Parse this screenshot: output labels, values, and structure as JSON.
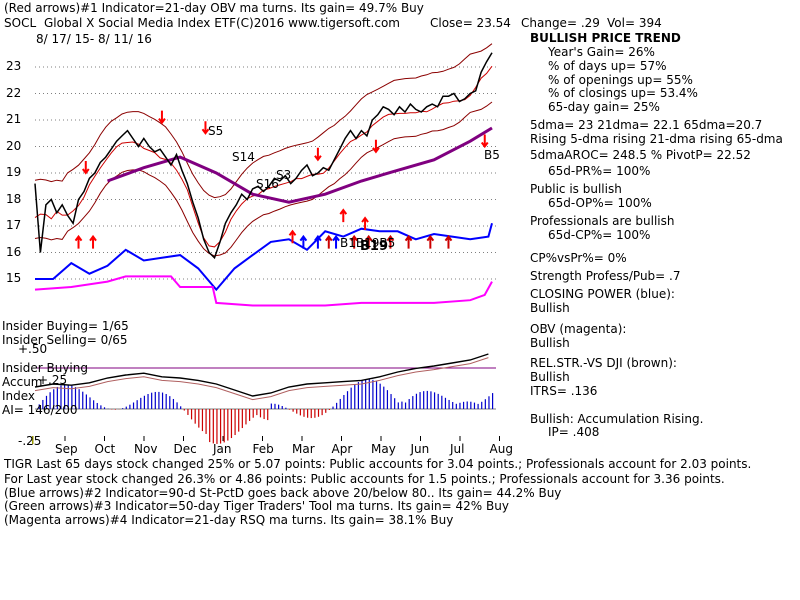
{
  "header": {
    "line1": "(Red arrows)#1 Indicator=21-day OBV ma turns. Its gain= 49.7% Buy",
    "symbol": "SOCL",
    "name": "Global X Social Media Index ETF",
    "copyright": "(C)2016 www.tigersoft.com",
    "close": "Close= 23.54",
    "change": "Change= .29",
    "vol": "Vol= 394",
    "daterange": "8/ 17/ 15- 8/ 11/ 16"
  },
  "right_panel": {
    "trend": "BULLISH PRICE TREND",
    "year_gain": "Year's Gain= 26%",
    "days_up": "% of days up= 57%",
    "openings_up": "% of openings up= 55%",
    "closings_up": "% of closings up= 53.4%",
    "gain65": "65-day gain= 25%",
    "dma": "5dma= 23 21dma= 22.1 65dma=20.7",
    "rising": "Rising 5-dma rising 21-dma rising 65-dma",
    "aroc": "5dmaAROC= 248.5 %  PivotP= 22.52",
    "pr": "65d-PR%= 100%",
    "public": "Public is bullish",
    "op": "65d-OP%= 100%",
    "prof": "Professionals are bullish",
    "cp": "65d-CP%= 100%",
    "cpvspr": "CP%vsPr%=  0%",
    "strength": "Strength Profess/Pub= .7",
    "closing_power": "CLOSING POWER (blue):",
    "cp_state": "Bullish",
    "obv": "OBV (magenta):",
    "obv_state": "Bullish",
    "relstr": "REL.STR.-VS DJI (brown):",
    "relstr_state": "Bullish",
    "itrs": "ITRS= .136",
    "accum": "Bullish: Accumulation Rising.",
    "ip": "IP=  .408"
  },
  "left_labels": {
    "insider_buying": "Insider Buying= 1/65",
    "insider_selling": "Insider Selling= 0/65",
    "insider_buying2": "Insider Buying",
    "accum_line1": "Accum",
    "accum_line2": "Index",
    "ai": "AI= 146/200",
    "plus50": "+.50",
    "plus25": "+.25",
    "minus25": "-.25"
  },
  "signals": {
    "s5": "S5",
    "s14": "S14",
    "s16": "S16",
    "s3": "S3",
    "b5": "B5",
    "b_cluster": "B1B19B5",
    "b19": "B19"
  },
  "bottom": {
    "line1": "TIGR Last 65 days stock changed  25% or  5.07 points:  Public accounts for  3.04 points.;  Professionals account for  2.03 points.",
    "line2": "For Last year stock changed  26.3% or  4.86 points:  Public accounts for  1.5 points.;  Professionals account for  3.36 points.",
    "line3": "(Blue arrows)#2 Indicator=90-d St-PctD goes back above 20/below 80.. Its gain= 44.2% Buy",
    "line4": "(Green arrows)#3 Indicator=50-day Tiger Traders' Tool ma turns. Its gain= 42% Buy",
    "line5": "(Magenta arrows)#4 Indicator=21-day RSQ ma turns. Its gain= 38.1% Buy"
  },
  "chart_data": {
    "type": "line",
    "ylim": [
      14.3,
      24.2
    ],
    "yticks": [
      "23",
      "22",
      "21",
      "20",
      "19",
      "18",
      "17",
      "16",
      "15"
    ],
    "xticks": [
      "Sep",
      "Oct",
      "Nov",
      "Dec",
      "Jan",
      "Feb",
      "Mar",
      "Apr",
      "May",
      "Jun",
      "Jul",
      "Aug"
    ],
    "price": {
      "x": [
        0,
        3,
        6,
        9,
        12,
        15,
        18,
        21,
        24,
        27,
        30,
        33,
        36,
        39,
        42,
        45,
        48,
        51,
        54,
        57,
        60,
        63,
        66,
        69,
        72,
        75,
        78,
        81,
        84,
        87,
        90,
        93,
        96,
        99,
        102,
        105,
        108,
        111,
        114,
        117,
        120,
        123,
        126,
        129,
        132,
        135,
        138,
        141,
        144,
        147,
        150,
        153,
        156,
        159,
        162,
        165,
        168,
        171,
        174,
        177,
        180,
        183,
        186,
        189,
        192,
        195,
        198,
        201,
        204,
        207,
        210,
        213,
        216,
        219,
        222,
        225,
        228,
        231,
        234,
        237,
        240,
        243,
        246,
        249,
        252
      ],
      "y": [
        18.6,
        16.0,
        17.8,
        18.0,
        17.5,
        17.8,
        17.4,
        17.1,
        18.0,
        18.3,
        18.8,
        19.0,
        19.4,
        19.6,
        19.9,
        20.2,
        20.4,
        20.6,
        20.3,
        20.0,
        20.3,
        20.0,
        19.8,
        19.9,
        19.6,
        19.3,
        19.7,
        19.1,
        18.6,
        17.9,
        17.3,
        16.5,
        16.0,
        15.8,
        16.4,
        17.1,
        17.5,
        17.8,
        18.2,
        18.0,
        18.4,
        18.5,
        18.3,
        18.5,
        18.8,
        18.7,
        18.9,
        18.6,
        18.8,
        19.1,
        19.3,
        18.9,
        19.0,
        19.2,
        19.1,
        19.5,
        19.9,
        20.3,
        20.6,
        20.3,
        20.6,
        20.4,
        21.0,
        21.2,
        21.5,
        21.4,
        21.2,
        21.5,
        21.3,
        21.6,
        21.4,
        21.3,
        21.5,
        21.6,
        21.5,
        21.9,
        21.9,
        22.0,
        21.7,
        21.8,
        22.0,
        22.1,
        22.8,
        23.2,
        23.54
      ]
    },
    "closing_power": {
      "x": [
        0,
        10,
        20,
        30,
        40,
        50,
        60,
        70,
        80,
        90,
        100,
        110,
        120,
        130,
        140,
        150,
        160,
        170,
        180,
        190,
        200,
        210,
        220,
        230,
        240,
        250,
        252
      ],
      "y": [
        15.0,
        15.0,
        15.6,
        15.2,
        15.5,
        16.1,
        15.7,
        15.8,
        15.9,
        15.4,
        14.6,
        15.4,
        15.9,
        16.4,
        16.5,
        16.1,
        16.8,
        16.6,
        16.9,
        16.8,
        16.8,
        16.5,
        16.7,
        16.6,
        16.5,
        16.6,
        17.1
      ]
    },
    "obv": {
      "x": [
        0,
        20,
        40,
        50,
        60,
        75,
        80,
        85,
        90,
        98,
        100,
        120,
        140,
        160,
        180,
        200,
        220,
        240,
        248,
        252
      ],
      "y": [
        14.6,
        14.7,
        14.9,
        15.1,
        15.1,
        15.1,
        14.7,
        14.7,
        14.7,
        14.7,
        14.1,
        14.0,
        14.0,
        14.0,
        14.1,
        14.1,
        14.1,
        14.2,
        14.4,
        14.9
      ]
    },
    "ma65": {
      "x": [
        40,
        60,
        80,
        100,
        120,
        140,
        160,
        180,
        200,
        220,
        240,
        252
      ],
      "y": [
        18.7,
        19.2,
        19.6,
        19.0,
        18.2,
        17.9,
        18.2,
        18.7,
        19.1,
        19.5,
        20.2,
        20.7
      ]
    }
  }
}
